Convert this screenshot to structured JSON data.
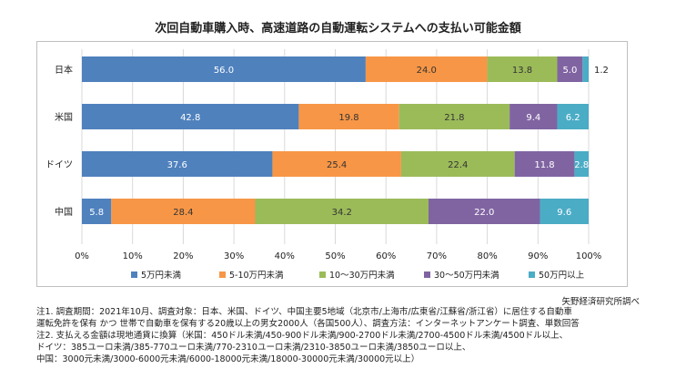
{
  "chart_data": {
    "type": "bar",
    "orientation": "horizontal",
    "stacked": true,
    "title": "次回自動車購入時、高速道路の自動運転システムへの支払い可能金額",
    "categories": [
      "日本",
      "米国",
      "ドイツ",
      "中国"
    ],
    "series": [
      {
        "name": "5万円未満",
        "color": "#4f81bd",
        "values": [
          56.0,
          42.8,
          37.6,
          5.8
        ]
      },
      {
        "name": "5-10万円未満",
        "color": "#f79646",
        "values": [
          24.0,
          19.8,
          25.4,
          28.4
        ]
      },
      {
        "name": "10～30万円未満",
        "color": "#9bbb59",
        "values": [
          13.8,
          21.8,
          22.4,
          34.2
        ]
      },
      {
        "name": "30～50万円未満",
        "color": "#8064a2",
        "values": [
          5.0,
          9.4,
          11.8,
          22.0
        ]
      },
      {
        "name": "50万円以上",
        "color": "#4bacc6",
        "values": [
          1.2,
          6.2,
          2.8,
          9.6
        ]
      }
    ],
    "value_labels": [
      [
        "56.0",
        "24.0",
        "13.8",
        "5.0",
        "1.2"
      ],
      [
        "42.8",
        "19.8",
        "21.8",
        "9.4",
        "6.2"
      ],
      [
        "37.6",
        "25.4",
        "22.4",
        "11.8",
        "2.8"
      ],
      [
        "5.8",
        "28.4",
        "34.2",
        "22.0",
        "9.6"
      ]
    ],
    "xlim": [
      0,
      100
    ],
    "xticks": [
      "0%",
      "10%",
      "20%",
      "30%",
      "40%",
      "50%",
      "60%",
      "70%",
      "80%",
      "90%",
      "100%"
    ],
    "grid": true,
    "legend_position": "bottom"
  },
  "source": "矢野経済研究所調べ",
  "notes": [
    "注1. 調査期間：2021年10月、調査対象：日本、米国、ドイツ、中国主要5地域（北京市/上海市/広東省/江蘇省/浙江省）に居住する自動車",
    "運転免許を保有 かつ 世帯で自動車を保有する20歳以上の男女2000人（各国500人）、調査方法：インターネットアンケート調査、単数回答",
    "注2. 支払える金額は現地通貨に換算（米国：450ドル未満/450-900ドル未満/900-2700ドル未満/2700-4500ドル未満/4500ドル以上、",
    "ドイツ：385ユーロ未満/385-770ユーロ未満/770-2310ユーロ未満/2310-3850ユーロ未満/3850ユーロ以上、",
    "中国：3000元未満/3000-6000元未満/6000-18000元未満/18000-30000元未満/30000元以上）"
  ]
}
